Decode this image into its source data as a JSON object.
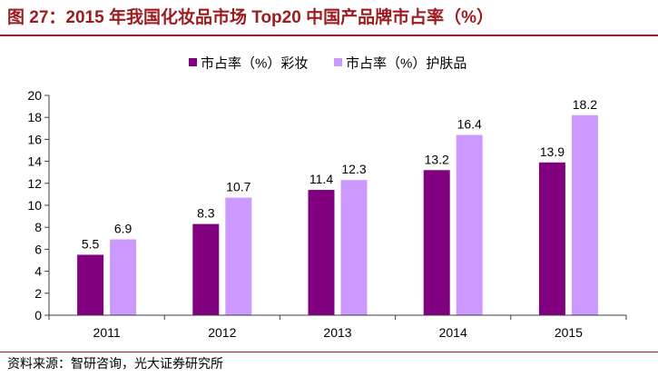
{
  "figure_label": "图 27：",
  "source": "资料来源：智研咨询，光大证券研究所",
  "colors": {
    "title": "#9b1b1e",
    "rule": "#9b1b1e",
    "axis": "#404040"
  },
  "chart_data": {
    "type": "bar",
    "title": "2015 年我国化妆品市场 Top20 中国产品牌市占率（%）",
    "categories": [
      "2011",
      "2012",
      "2013",
      "2014",
      "2015"
    ],
    "series": [
      {
        "name": "市占率（%）彩妆",
        "color": "#800080",
        "values": [
          5.5,
          8.3,
          11.4,
          13.2,
          13.9
        ]
      },
      {
        "name": "市占率（%）护肤品",
        "color": "#cc99ff",
        "values": [
          6.9,
          10.7,
          12.3,
          16.4,
          18.2
        ]
      }
    ],
    "ylim": [
      0,
      20
    ],
    "yticks": [
      0,
      2,
      4,
      6,
      8,
      10,
      12,
      14,
      16,
      18,
      20
    ],
    "grid": false,
    "legend": "top",
    "data_labels": true
  }
}
